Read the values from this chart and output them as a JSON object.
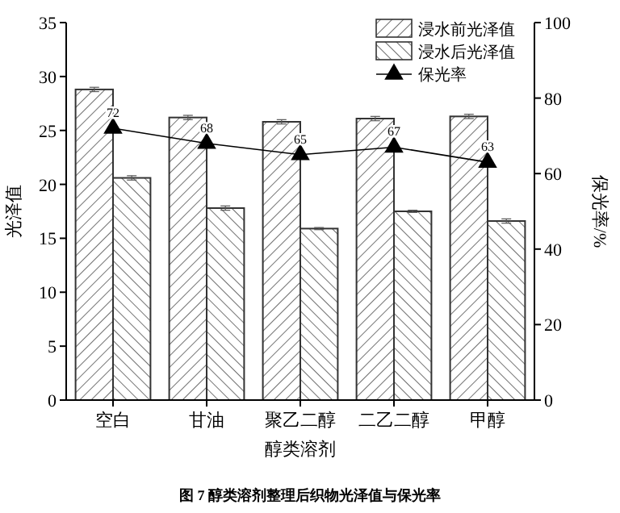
{
  "chart_data": {
    "type": "bar",
    "categories": [
      "空白",
      "甘油",
      "聚乙二醇",
      "二乙二醇",
      "甲醇"
    ],
    "xlabel": "醇类溶剂",
    "ylabel": "光泽值",
    "y2label": "保光率/%",
    "series": [
      {
        "name": "浸水前光泽值",
        "color": "#333333",
        "values": [
          28.8,
          26.2,
          25.8,
          26.1,
          26.3
        ],
        "errors": [
          0.2,
          0.2,
          0.2,
          0.2,
          0.2
        ]
      },
      {
        "name": "浸水后光泽值",
        "color": "#333333",
        "values": [
          20.6,
          17.8,
          15.9,
          17.5,
          16.6
        ],
        "errors": [
          0.2,
          0.2,
          0.1,
          0.1,
          0.2
        ]
      },
      {
        "name": "保光率",
        "type": "line",
        "axis": "y2",
        "color": "#000000",
        "marker": "triangle",
        "values": [
          72,
          68,
          65,
          67,
          63
        ],
        "data_labels": true
      }
    ],
    "ylim": [
      0,
      35
    ],
    "yticks": [
      0,
      5,
      10,
      15,
      20,
      25,
      30,
      35
    ],
    "y2lim": [
      0,
      100
    ],
    "y2ticks": [
      0,
      20,
      40,
      60,
      80,
      100
    ],
    "legend": "top right",
    "annotations": [
      "图 7 醇类溶剂整理后织物光泽值与保光率"
    ]
  }
}
